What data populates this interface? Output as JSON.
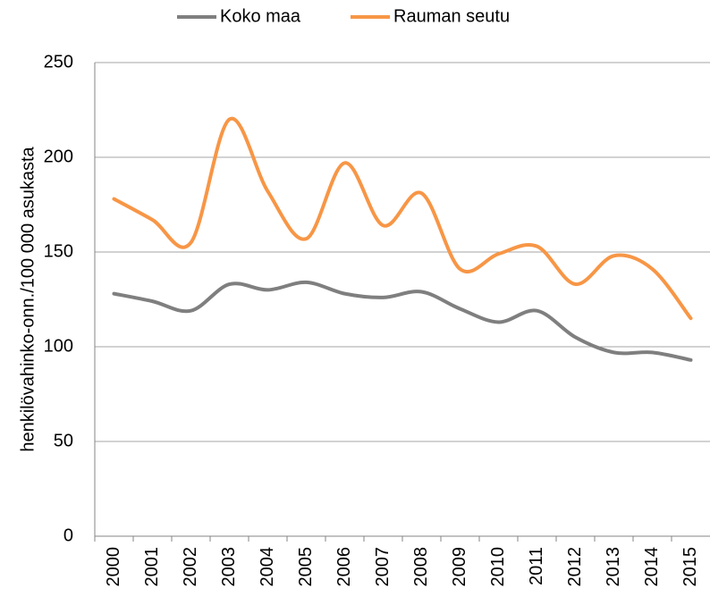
{
  "chart_data": {
    "type": "line",
    "y_label": "henkilövahinko-onn./100 000 asukasta",
    "categories": [
      "2000",
      "2001",
      "2002",
      "2003",
      "2004",
      "2005",
      "2006",
      "2007",
      "2008",
      "2009",
      "2010",
      "2011",
      "2012",
      "2013",
      "2014",
      "2015"
    ],
    "series": [
      {
        "name": "Koko maa",
        "color": "#7f7f7f",
        "values": [
          128,
          124,
          119,
          133,
          130,
          134,
          128,
          126,
          129,
          120,
          113,
          119,
          105,
          97,
          97,
          93
        ]
      },
      {
        "name": "Rauman seutu",
        "color": "#f79646",
        "values": [
          178,
          167,
          155,
          220,
          182,
          157,
          197,
          164,
          181,
          141,
          149,
          153,
          133,
          148,
          141,
          115
        ]
      }
    ],
    "ylim": [
      0,
      250
    ],
    "yticks": [
      0,
      50,
      100,
      150,
      200,
      250
    ],
    "grid": true,
    "smooth": true,
    "legend": "top"
  }
}
